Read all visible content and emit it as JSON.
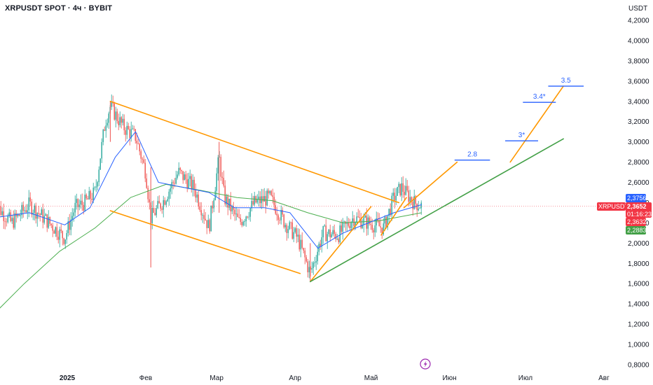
{
  "header": {
    "title": "XRPUSDT SPOT · 4ч · BYBIT"
  },
  "axis": {
    "currency": "USDT",
    "ymin": 0.8,
    "ymax": 4.2,
    "yticks": [
      "4,2000",
      "4,0000",
      "3,8000",
      "3,6000",
      "3,4000",
      "3,2000",
      "3,0000",
      "2,8000",
      "2,6000",
      "2,4000",
      "2,2000",
      "2,0000",
      "1,8000",
      "1,6000",
      "1,4000",
      "1,2000",
      "1,0000",
      "0,8000"
    ],
    "xticks": [
      "2025",
      "Фев",
      "Мар",
      "Апр",
      "Май",
      "Июн",
      "Июл",
      "Авг"
    ]
  },
  "price_tags": {
    "top": {
      "value": "2,3756",
      "color": "#2962ff"
    },
    "symbol": {
      "value": "XRPUSDT",
      "color": "#f23645"
    },
    "current": {
      "value": "2,3652",
      "color": "#f23645"
    },
    "timer": {
      "value": "01:16:23",
      "color": "#f23645"
    },
    "mid": {
      "value": "2,3632",
      "color": "#f23645"
    },
    "bottom": {
      "value": "2,2883",
      "color": "#43a047"
    }
  },
  "annotations": {
    "t1": "2.8",
    "t2": "3*",
    "t3": "3.4*",
    "t4": "3.5"
  },
  "icons": {
    "event": "lightning-icon"
  },
  "colors": {
    "up_candle": "#26a69a",
    "down_candle": "#ef5350",
    "ma_fast": "#2962ff",
    "ma_slow": "#4caf50",
    "channel": "#ff9800",
    "trend": "#43a047"
  },
  "chart_data": {
    "type": "candlestick",
    "symbol": "XRPUSDT",
    "exchange": "BYBIT",
    "timeframe": "4ч",
    "ylim": [
      0.8,
      4.2
    ],
    "xlabels": [
      "2025",
      "Фев",
      "Мар",
      "Апр",
      "Май",
      "Июн",
      "Июл",
      "Авг"
    ],
    "last_price": 2.3652,
    "price_path": [
      {
        "date": "2024-12-03",
        "price": 2.4
      },
      {
        "date": "2024-12-10",
        "price": 2.2
      },
      {
        "date": "2024-12-17",
        "price": 2.38
      },
      {
        "date": "2024-12-24",
        "price": 2.22
      },
      {
        "date": "2024-12-31",
        "price": 2.05
      },
      {
        "date": "2025-01-04",
        "price": 2.35
      },
      {
        "date": "2025-01-08",
        "price": 2.4
      },
      {
        "date": "2025-01-12",
        "price": 2.5
      },
      {
        "date": "2025-01-16",
        "price": 3.2
      },
      {
        "date": "2025-01-18",
        "price": 3.35
      },
      {
        "date": "2025-01-23",
        "price": 3.15
      },
      {
        "date": "2025-01-28",
        "price": 3.05
      },
      {
        "date": "2025-02-01",
        "price": 2.7
      },
      {
        "date": "2025-02-03",
        "price": 2.25
      },
      {
        "date": "2025-02-08",
        "price": 2.42
      },
      {
        "date": "2025-02-14",
        "price": 2.7
      },
      {
        "date": "2025-02-20",
        "price": 2.55
      },
      {
        "date": "2025-02-26",
        "price": 2.15
      },
      {
        "date": "2025-03-02",
        "price": 2.85
      },
      {
        "date": "2025-03-04",
        "price": 2.45
      },
      {
        "date": "2025-03-10",
        "price": 2.2
      },
      {
        "date": "2025-03-16",
        "price": 2.4
      },
      {
        "date": "2025-03-22",
        "price": 2.45
      },
      {
        "date": "2025-03-28",
        "price": 2.2
      },
      {
        "date": "2025-04-02",
        "price": 2.05
      },
      {
        "date": "2025-04-07",
        "price": 1.7
      },
      {
        "date": "2025-04-12",
        "price": 2.1
      },
      {
        "date": "2025-04-18",
        "price": 2.08
      },
      {
        "date": "2025-04-24",
        "price": 2.25
      },
      {
        "date": "2025-04-30",
        "price": 2.2
      },
      {
        "date": "2025-05-06",
        "price": 2.15
      },
      {
        "date": "2025-05-10",
        "price": 2.45
      },
      {
        "date": "2025-05-13",
        "price": 2.55
      },
      {
        "date": "2025-05-18",
        "price": 2.4
      },
      {
        "date": "2025-05-21",
        "price": 2.37
      }
    ],
    "ma_fast": [
      {
        "date": "2024-12-03",
        "value": 2.25
      },
      {
        "date": "2024-12-17",
        "value": 2.3
      },
      {
        "date": "2024-12-31",
        "value": 2.18
      },
      {
        "date": "2025-01-10",
        "value": 2.35
      },
      {
        "date": "2025-01-20",
        "value": 2.85
      },
      {
        "date": "2025-01-28",
        "value": 3.1
      },
      {
        "date": "2025-02-06",
        "value": 2.6
      },
      {
        "date": "2025-02-16",
        "value": 2.55
      },
      {
        "date": "2025-02-26",
        "value": 2.5
      },
      {
        "date": "2025-03-08",
        "value": 2.35
      },
      {
        "date": "2025-03-20",
        "value": 2.35
      },
      {
        "date": "2025-03-30",
        "value": 2.3
      },
      {
        "date": "2025-04-10",
        "value": 1.95
      },
      {
        "date": "2025-04-20",
        "value": 2.1
      },
      {
        "date": "2025-04-30",
        "value": 2.2
      },
      {
        "date": "2025-05-10",
        "value": 2.3
      },
      {
        "date": "2025-05-21",
        "value": 2.38
      }
    ],
    "ma_slow": [
      {
        "date": "2024-12-01",
        "value": 1.25
      },
      {
        "date": "2024-12-15",
        "value": 1.6
      },
      {
        "date": "2024-12-29",
        "value": 1.92
      },
      {
        "date": "2025-01-12",
        "value": 2.15
      },
      {
        "date": "2025-01-26",
        "value": 2.45
      },
      {
        "date": "2025-02-09",
        "value": 2.58
      },
      {
        "date": "2025-02-23",
        "value": 2.52
      },
      {
        "date": "2025-03-09",
        "value": 2.45
      },
      {
        "date": "2025-03-23",
        "value": 2.42
      },
      {
        "date": "2025-04-06",
        "value": 2.3
      },
      {
        "date": "2025-04-20",
        "value": 2.2
      },
      {
        "date": "2025-05-04",
        "value": 2.22
      },
      {
        "date": "2025-05-21",
        "value": 2.3
      }
    ],
    "drawings": [
      {
        "kind": "channel-upper",
        "color": "#ff9800",
        "from": {
          "date": "2025-01-18",
          "price": 3.4
        },
        "to": {
          "date": "2025-05-12",
          "price": 2.4
        }
      },
      {
        "kind": "channel-lower",
        "color": "#ff9800",
        "from": {
          "date": "2025-01-18",
          "price": 2.32
        },
        "to": {
          "date": "2025-04-03",
          "price": 1.7
        }
      },
      {
        "kind": "fan-1",
        "color": "#ff9800",
        "from": {
          "date": "2025-04-07",
          "price": 1.62
        },
        "to": {
          "date": "2025-05-01",
          "price": 2.36
        }
      },
      {
        "kind": "fan-2",
        "color": "#ff9800",
        "from": {
          "date": "2025-05-05",
          "price": 2.08
        },
        "to": {
          "date": "2025-05-15",
          "price": 2.45
        }
      },
      {
        "kind": "fan-3",
        "color": "#ff9800",
        "from": {
          "date": "2025-05-14",
          "price": 2.35
        },
        "to": {
          "date": "2025-06-04",
          "price": 2.8
        }
      },
      {
        "kind": "fan-4",
        "color": "#ff9800",
        "from": {
          "date": "2025-06-25",
          "price": 2.8
        },
        "to": {
          "date": "2025-07-16",
          "price": 3.55
        }
      },
      {
        "kind": "trendline",
        "color": "#43a047",
        "from": {
          "date": "2025-04-07",
          "price": 1.62
        },
        "to": {
          "date": "2025-07-16",
          "price": 3.03
        }
      }
    ],
    "targets": [
      {
        "label": "2.8",
        "price": 2.82,
        "from": "2025-06-03",
        "to": "2025-06-17"
      },
      {
        "label": "3*",
        "price": 3.01,
        "from": "2025-06-23",
        "to": "2025-07-06"
      },
      {
        "label": "3.4*",
        "price": 3.39,
        "from": "2025-06-30",
        "to": "2025-07-13"
      },
      {
        "label": "3.5",
        "price": 3.55,
        "from": "2025-07-10",
        "to": "2025-07-24"
      }
    ]
  }
}
